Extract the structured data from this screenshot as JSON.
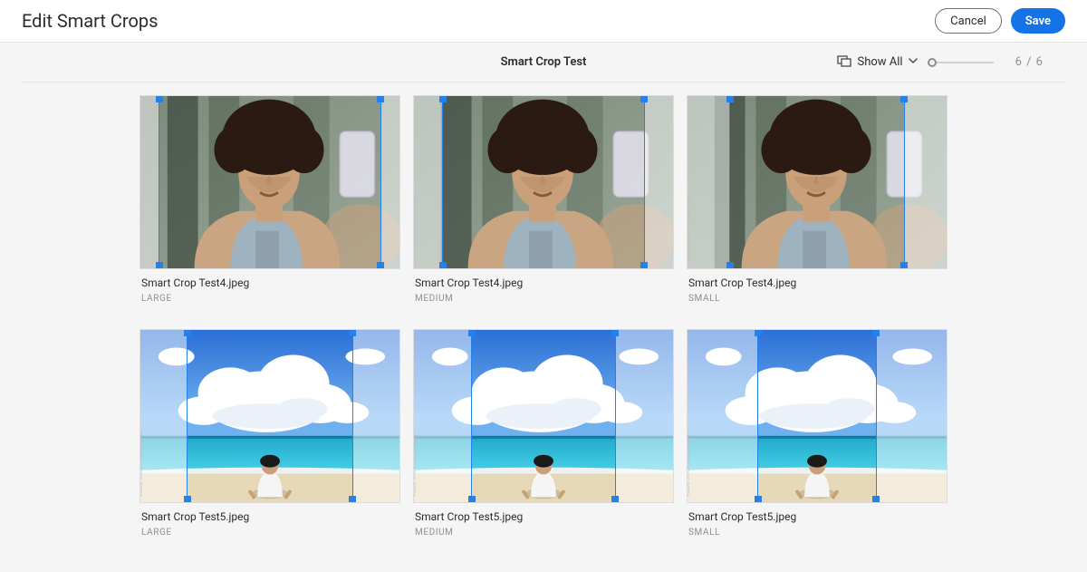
{
  "header": {
    "title": "Edit Smart Crops",
    "cancel_label": "Cancel",
    "save_label": "Save"
  },
  "toolbar": {
    "center_title": "Smart Crop Test",
    "show_all_label": "Show All",
    "page_count": "6 / 6",
    "zoom_position": 0
  },
  "crop_marker_color": "#2680eb",
  "crops": [
    {
      "file": "Smart Crop Test4.jpeg",
      "size": "LARGE",
      "image": "portrait",
      "crop_left_pct": 7,
      "crop_right_pct": 7
    },
    {
      "file": "Smart Crop Test4.jpeg",
      "size": "MEDIUM",
      "image": "portrait",
      "crop_left_pct": 11,
      "crop_right_pct": 11
    },
    {
      "file": "Smart Crop Test4.jpeg",
      "size": "SMALL",
      "image": "portrait",
      "crop_left_pct": 16,
      "crop_right_pct": 16
    },
    {
      "file": "Smart Crop Test5.jpeg",
      "size": "LARGE",
      "image": "beach",
      "crop_left_pct": 18,
      "crop_right_pct": 18
    },
    {
      "file": "Smart Crop Test5.jpeg",
      "size": "MEDIUM",
      "image": "beach",
      "crop_left_pct": 22,
      "crop_right_pct": 22
    },
    {
      "file": "Smart Crop Test5.jpeg",
      "size": "SMALL",
      "image": "beach",
      "crop_left_pct": 27,
      "crop_right_pct": 27
    }
  ],
  "images": {
    "portrait": "portrait-svg",
    "beach": "beach-svg"
  },
  "colors": {
    "portrait": {
      "bg": "#7b8a7b",
      "bg2": "#9aa89a",
      "skin": "#caa07a",
      "skin_shadow": "#b38760",
      "hair": "#2a1a12",
      "hoodie": "#9fb2bf",
      "jacket": "#c9a582",
      "phone": "#e6e3f0",
      "door_dark": "#2e3a2e"
    },
    "beach": {
      "sky_top": "#2a6fd6",
      "sky_bot": "#6fb0ef",
      "cloud": "#ffffff",
      "cloud_shadow": "#e6eef7",
      "sea_light": "#46d0e6",
      "sea_dark": "#1fa8c9",
      "horizon": "#0e7aa3",
      "sand": "#e6d9b8",
      "person_shirt": "#f5f5f5",
      "person_hat": "#1a1a1a"
    }
  }
}
